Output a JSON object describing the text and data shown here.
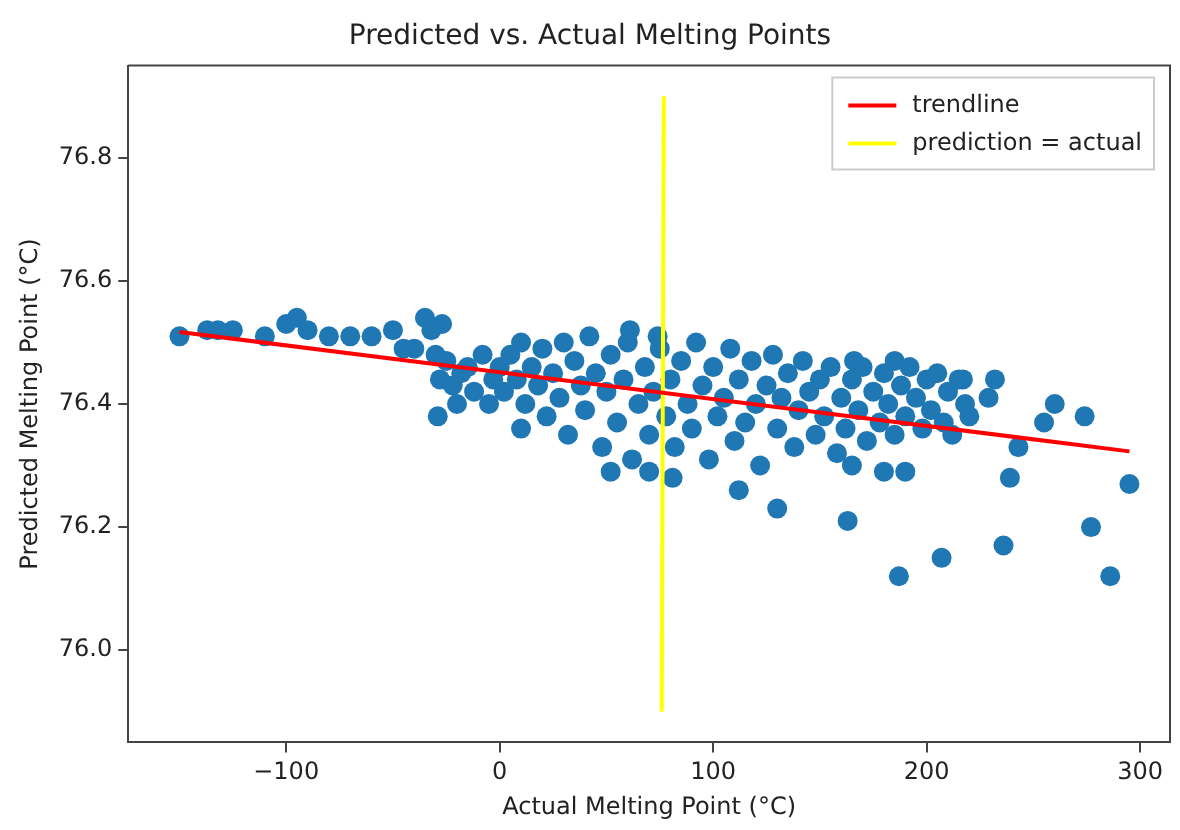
{
  "chart_data": {
    "type": "scatter",
    "title": "Predicted vs. Actual Melting Points",
    "xlabel": "Actual Melting Point (°C)",
    "ylabel": "Predicted Melting Point (°C)",
    "xlim": [
      -174,
      314
    ],
    "ylim": [
      75.85,
      76.95
    ],
    "xticks": [
      -100,
      0,
      100,
      200,
      300
    ],
    "yticks": [
      {
        "value": 76.0,
        "label": "76.0"
      },
      76.2,
      76.4,
      76.6,
      76.8
    ],
    "grid": false,
    "legend": "top right",
    "series": [
      {
        "marker": "circle",
        "color": "#1f77b4",
        "x": [
          -150,
          -137,
          -132,
          -125,
          -110,
          -100,
          -95,
          -90,
          -80,
          -70,
          -60,
          -50,
          -45,
          -40,
          -35,
          -32,
          -30,
          -28,
          -27,
          -25,
          -22,
          -20,
          -15,
          -29,
          -18,
          -12,
          -8,
          -5,
          -3,
          0,
          2,
          5,
          8,
          10,
          12,
          15,
          18,
          20,
          22,
          25,
          28,
          30,
          32,
          35,
          38,
          40,
          42,
          45,
          48,
          50,
          52,
          55,
          58,
          60,
          62,
          65,
          68,
          70,
          72,
          75,
          78,
          80,
          82,
          85,
          88,
          90,
          92,
          95,
          98,
          100,
          102,
          105,
          108,
          110,
          112,
          115,
          118,
          120,
          122,
          125,
          128,
          130,
          132,
          135,
          138,
          140,
          142,
          145,
          148,
          150,
          152,
          155,
          158,
          160,
          162,
          165,
          168,
          170,
          172,
          175,
          178,
          180,
          182,
          185,
          188,
          190,
          192,
          195,
          198,
          200,
          202,
          205,
          208,
          210,
          212,
          215,
          218,
          220,
          52,
          70,
          81,
          112,
          130,
          10,
          61,
          74,
          163,
          187,
          207,
          236,
          239,
          277,
          286,
          295,
          243,
          255,
          274,
          260,
          229,
          232,
          166,
          185,
          217,
          165,
          180,
          190
        ],
        "values": [
          76.51,
          76.52,
          76.52,
          76.52,
          76.51,
          76.53,
          76.54,
          76.52,
          76.51,
          76.51,
          76.51,
          76.52,
          76.49,
          76.49,
          76.54,
          76.52,
          76.48,
          76.44,
          76.53,
          76.47,
          76.43,
          76.4,
          76.46,
          76.38,
          76.45,
          76.42,
          76.48,
          76.4,
          76.44,
          76.46,
          76.42,
          76.48,
          76.44,
          76.5,
          76.4,
          76.46,
          76.43,
          76.49,
          76.38,
          76.45,
          76.41,
          76.5,
          76.35,
          76.47,
          76.43,
          76.39,
          76.51,
          76.45,
          76.33,
          76.42,
          76.48,
          76.37,
          76.44,
          76.5,
          76.31,
          76.4,
          76.46,
          76.35,
          76.42,
          76.49,
          76.38,
          76.44,
          76.33,
          76.47,
          76.4,
          76.36,
          76.5,
          76.43,
          76.31,
          76.46,
          76.38,
          76.41,
          76.49,
          76.34,
          76.44,
          76.37,
          76.47,
          76.4,
          76.3,
          76.43,
          76.48,
          76.36,
          76.41,
          76.45,
          76.33,
          76.39,
          76.47,
          76.42,
          76.35,
          76.44,
          76.38,
          76.46,
          76.32,
          76.41,
          76.36,
          76.44,
          76.39,
          76.46,
          76.34,
          76.42,
          76.37,
          76.45,
          76.4,
          76.35,
          76.43,
          76.38,
          76.46,
          76.41,
          76.36,
          76.44,
          76.39,
          76.45,
          76.37,
          76.42,
          76.35,
          76.44,
          76.4,
          76.38,
          76.29,
          76.29,
          76.28,
          76.26,
          76.23,
          76.36,
          76.52,
          76.51,
          76.21,
          76.12,
          76.15,
          76.17,
          76.28,
          76.2,
          76.12,
          76.27,
          76.33,
          76.37,
          76.38,
          76.4,
          76.41,
          76.44,
          76.47,
          76.47,
          76.44,
          76.3,
          76.29,
          76.29
        ]
      },
      {
        "type": "line",
        "name": "trendline",
        "color": "#ff0000",
        "x": [
          -150,
          295
        ],
        "values": [
          76.517,
          76.323
        ]
      },
      {
        "type": "line",
        "name": "prediction = actual",
        "color": "#ffff00",
        "x": [
          75.9,
          76.9
        ],
        "values": [
          75.9,
          76.9
        ]
      }
    ]
  }
}
